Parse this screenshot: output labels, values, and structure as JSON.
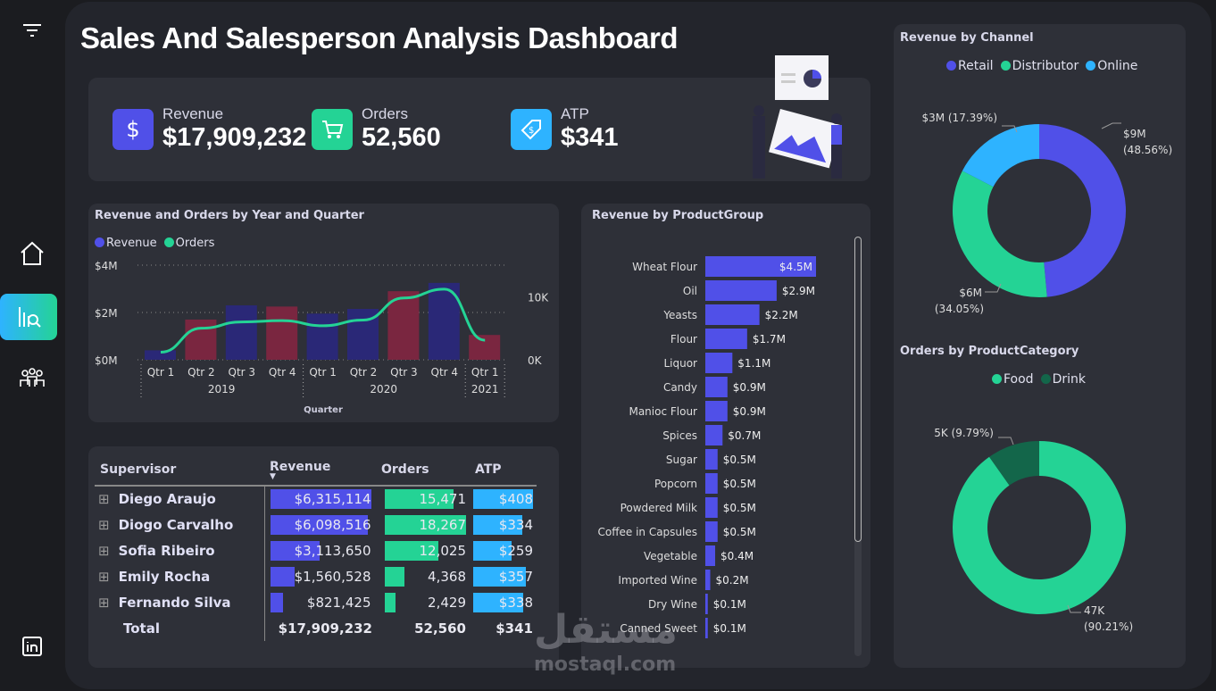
{
  "title": "Sales And Salesperson Analysis Dashboard",
  "sidebar": {
    "items": [
      "filter-icon",
      "home-icon",
      "analysis-icon",
      "people-icon",
      "linkedin-icon"
    ]
  },
  "kpis": [
    {
      "label": "Revenue",
      "value": "$17,909,232",
      "icon": "dollar-icon",
      "color": "#5050e8"
    },
    {
      "label": "Orders",
      "value": "52,560",
      "icon": "cart-icon",
      "color": "#24d395"
    },
    {
      "label": "ATP",
      "value": "$341",
      "icon": "price-tag-icon",
      "color": "#2eb3ff"
    }
  ],
  "combo": {
    "title": "Revenue and Orders by Year and Quarter",
    "legend": [
      "Revenue",
      "Orders"
    ],
    "xlabel": "Quarter",
    "left_ticks": [
      "$4M",
      "$2M",
      "$0M"
    ],
    "right_ticks": [
      "10K",
      "0K"
    ]
  },
  "chart_data": [
    {
      "type": "bar+line",
      "title": "Revenue and Orders by Year and Quarter",
      "xlabel": "Quarter",
      "categories": [
        "Qtr 1",
        "Qtr 2",
        "Qtr 3",
        "Qtr 4",
        "Qtr 1",
        "Qtr 2",
        "Qtr 3",
        "Qtr 4",
        "Qtr 1"
      ],
      "years": [
        {
          "label": "2019",
          "span": 4
        },
        {
          "label": "2020",
          "span": 4
        },
        {
          "label": "2021",
          "span": 1
        }
      ],
      "series": [
        {
          "name": "Revenue",
          "axis": "left",
          "values": [
            0.4,
            1.7,
            2.3,
            2.25,
            1.95,
            2.15,
            2.9,
            3.25,
            1.05
          ],
          "unit": "M$"
        },
        {
          "name": "Orders",
          "axis": "right",
          "values": [
            1200,
            5000,
            6000,
            6200,
            5400,
            6300,
            9800,
            11200,
            3100
          ]
        }
      ],
      "ylim_left": [
        0,
        4
      ],
      "ylim_right": [
        0,
        15000
      ],
      "bar_colors": [
        "#2a2877",
        "#7a2640"
      ],
      "line_color": "#24d395",
      "grid": true
    },
    {
      "type": "bar",
      "orientation": "horizontal",
      "title": "Revenue by ProductGroup",
      "categories": [
        "Wheat Flour",
        "Oil",
        "Yeasts",
        "Flour",
        "Liquor",
        "Candy",
        "Manioc Flour",
        "Spices",
        "Sugar",
        "Popcorn",
        "Powdered Milk",
        "Coffee in Capsules",
        "Vegetable",
        "Imported Wine",
        "Dry Wine",
        "Canned Sweet"
      ],
      "values": [
        4.5,
        2.9,
        2.2,
        1.7,
        1.1,
        0.9,
        0.9,
        0.7,
        0.5,
        0.5,
        0.5,
        0.5,
        0.4,
        0.2,
        0.1,
        0.1
      ],
      "labels": [
        "$4.5M",
        "$2.9M",
        "$2.2M",
        "$1.7M",
        "$1.1M",
        "$0.9M",
        "$0.9M",
        "$0.7M",
        "$0.5M",
        "$0.5M",
        "$0.5M",
        "$0.5M",
        "$0.4M",
        "$0.2M",
        "$0.1M",
        "$0.1M"
      ],
      "color": "#5050e8"
    },
    {
      "type": "pie",
      "donut": true,
      "title": "Revenue by Channel",
      "legend": [
        "Retail",
        "Distributor",
        "Online"
      ],
      "values": [
        48.56,
        34.05,
        17.39
      ],
      "labels": [
        "$9M (48.56%)",
        "$6M (34.05%)",
        "$3M (17.39%)"
      ],
      "colors": [
        "#5050e8",
        "#24d395",
        "#2eb3ff"
      ],
      "legend_position": "top"
    },
    {
      "type": "pie",
      "donut": true,
      "title": "Orders by ProductCategory",
      "legend": [
        "Food",
        "Drink"
      ],
      "values": [
        90.21,
        9.79
      ],
      "labels": [
        "47K (90.21%)",
        "5K (9.79%)"
      ],
      "colors": [
        "#24d395",
        "#13664a"
      ],
      "legend_position": "top"
    }
  ],
  "table": {
    "headers": [
      "Supervisor",
      "Revenue",
      "Orders",
      "ATP"
    ],
    "rows": [
      {
        "name": "Diego Araujo",
        "revenue": "$6,315,114",
        "orders": "15,471",
        "atp": "$408",
        "rv": 6315114,
        "ov": 15471,
        "av": 408
      },
      {
        "name": "Diogo Carvalho",
        "revenue": "$6,098,516",
        "orders": "18,267",
        "atp": "$334",
        "rv": 6098516,
        "ov": 18267,
        "av": 334
      },
      {
        "name": "Sofia Ribeiro",
        "revenue": "$3,113,650",
        "orders": "12,025",
        "atp": "$259",
        "rv": 3113650,
        "ov": 12025,
        "av": 259
      },
      {
        "name": "Emily Rocha",
        "revenue": "$1,560,528",
        "orders": "4,368",
        "atp": "$357",
        "rv": 1560528,
        "ov": 4368,
        "av": 357
      },
      {
        "name": "Fernando Silva",
        "revenue": "$821,425",
        "orders": "2,429",
        "atp": "$338",
        "rv": 821425,
        "ov": 2429,
        "av": 338
      }
    ],
    "total": {
      "label": "Total",
      "revenue": "$17,909,232",
      "orders": "52,560",
      "atp": "$341"
    }
  },
  "watermark": {
    "text": "mostaql.com",
    "logo": "مستقل"
  }
}
